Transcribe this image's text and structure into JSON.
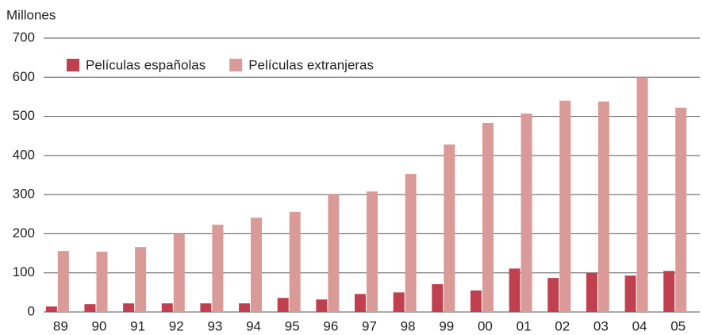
{
  "chart_data": {
    "type": "bar",
    "y_label": "Millones",
    "categories": [
      "89",
      "90",
      "91",
      "92",
      "93",
      "94",
      "95",
      "96",
      "97",
      "98",
      "99",
      "00",
      "01",
      "02",
      "03",
      "04",
      "05"
    ],
    "series": [
      {
        "name": "Películas españolas",
        "color": "#c0404f",
        "values": [
          14,
          20,
          22,
          22,
          22,
          22,
          36,
          32,
          46,
          50,
          71,
          55,
          111,
          87,
          100,
          93,
          105
        ]
      },
      {
        "name": "Películas extranjeras",
        "color": "#d99a98",
        "values": [
          156,
          154,
          166,
          200,
          223,
          241,
          256,
          302,
          308,
          353,
          428,
          483,
          507,
          540,
          538,
          600,
          522
        ]
      }
    ],
    "ylim": [
      0,
      700
    ],
    "yticks": [
      0,
      100,
      200,
      300,
      400,
      500,
      600,
      700
    ],
    "grid": true,
    "legend": "upper left"
  }
}
